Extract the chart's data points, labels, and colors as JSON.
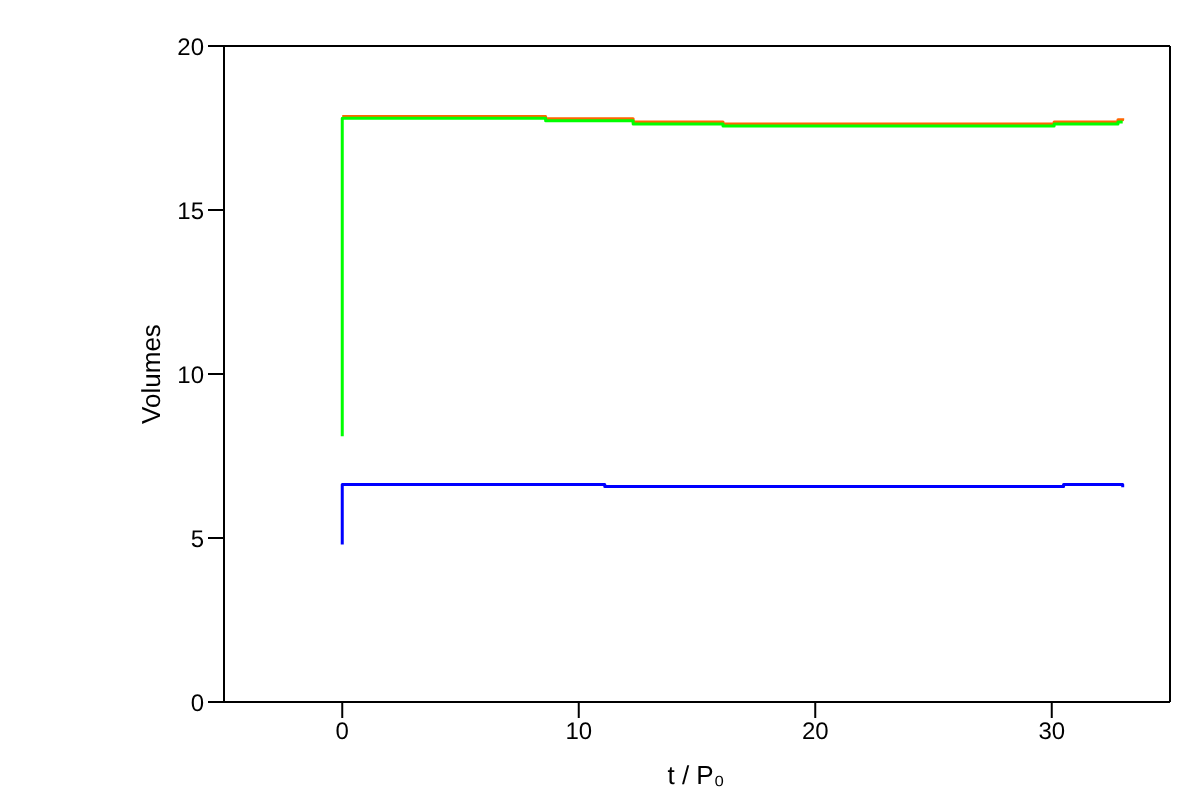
{
  "chart_data": {
    "type": "step",
    "xlabel": "t / P₀",
    "ylabel": "Volumes",
    "xlim": [
      -5,
      35
    ],
    "xticks": [
      0,
      10,
      20,
      30
    ],
    "ylim": [
      0,
      20
    ],
    "yticks": [
      0,
      5,
      10,
      15,
      20
    ],
    "marker": "none",
    "line_style": "solid",
    "series": [
      {
        "color": "#ff6600",
        "x": [
          0,
          8.6,
          12.3,
          16.1,
          30.1,
          32.8,
          33
        ],
        "values": [
          17.85,
          17.78,
          17.68,
          17.62,
          17.68,
          17.75,
          17.8
        ]
      },
      {
        "color": "#00ff00",
        "x": [
          0,
          0,
          8.6,
          12.3,
          16.1,
          30.1,
          32.8,
          33
        ],
        "values": [
          8.1,
          17.8,
          17.72,
          17.62,
          17.56,
          17.62,
          17.68,
          17.68
        ]
      },
      {
        "color": "#0000ff",
        "x": [
          0,
          0,
          11.1,
          30.5,
          33,
          33
        ],
        "values": [
          4.8,
          6.63,
          6.57,
          6.63,
          6.63,
          6.55
        ]
      }
    ]
  }
}
